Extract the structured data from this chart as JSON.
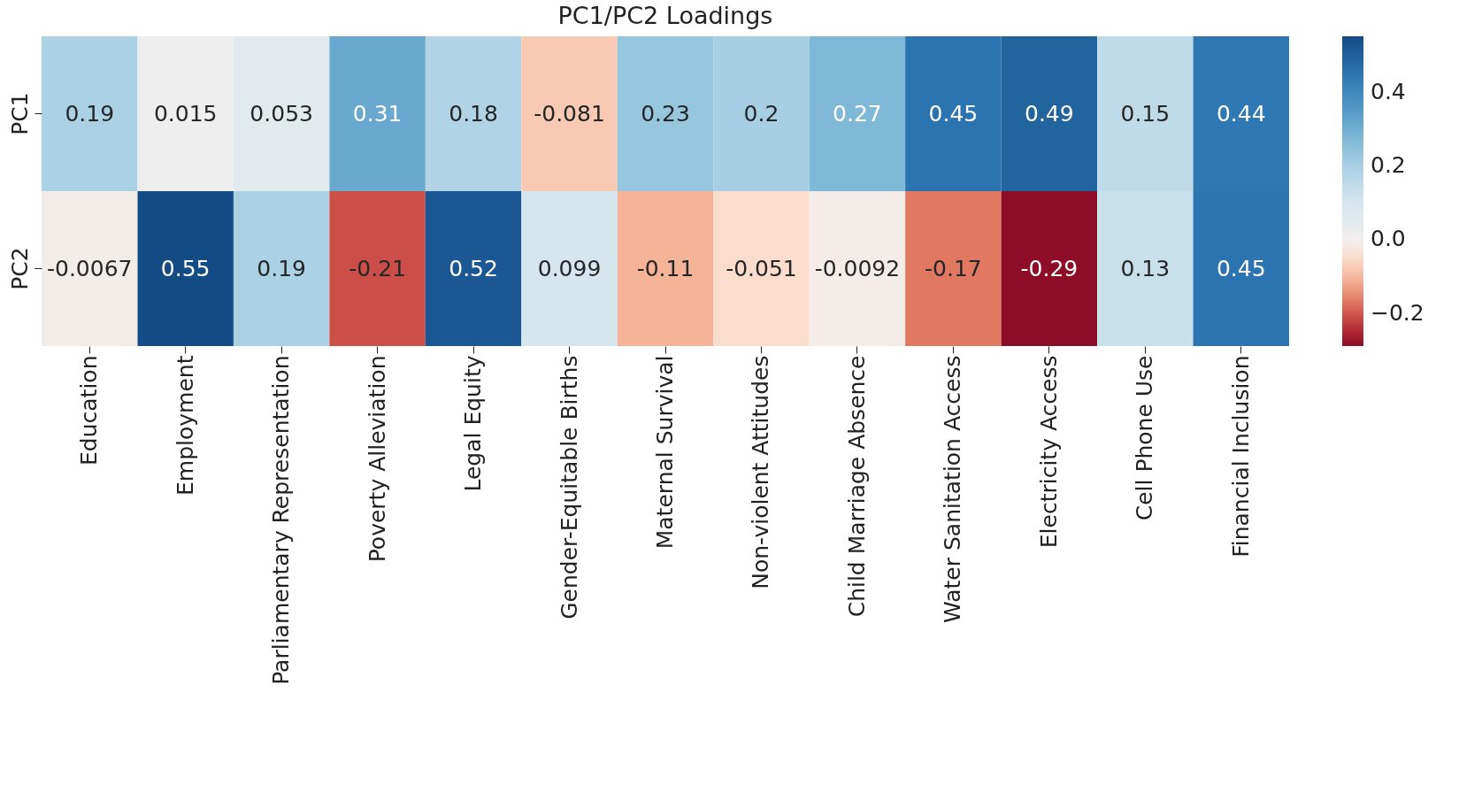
{
  "chart_data": {
    "type": "heatmap",
    "title": "PC1/PC2 Loadings",
    "categories": [
      "Education",
      "Employment",
      "Parliamentary Representation",
      "Poverty Alleviation",
      "Legal Equity",
      "Gender-Equitable Births",
      "Maternal Survival",
      "Non-violent Attitudes",
      "Child Marriage Absence",
      "Water Sanitation Access",
      "Electricity Access",
      "Cell Phone Use",
      "Financial Inclusion"
    ],
    "y_categories": [
      "PC1",
      "PC2"
    ],
    "cells": [
      [
        0.19,
        0.015,
        0.053,
        0.31,
        0.18,
        -0.081,
        0.23,
        0.2,
        0.27,
        0.45,
        0.49,
        0.15,
        0.44
      ],
      [
        -0.0067,
        0.55,
        0.19,
        -0.21,
        0.52,
        0.099,
        -0.11,
        -0.051,
        -0.0092,
        -0.17,
        -0.29,
        0.13,
        0.45
      ]
    ],
    "data_labels": true,
    "clim": [
      -0.29,
      0.55
    ],
    "cticks": [
      {
        "value": -0.2,
        "label": "−0.2"
      },
      {
        "value": 0,
        "label": "0.0"
      },
      0.2,
      0.4
    ]
  }
}
